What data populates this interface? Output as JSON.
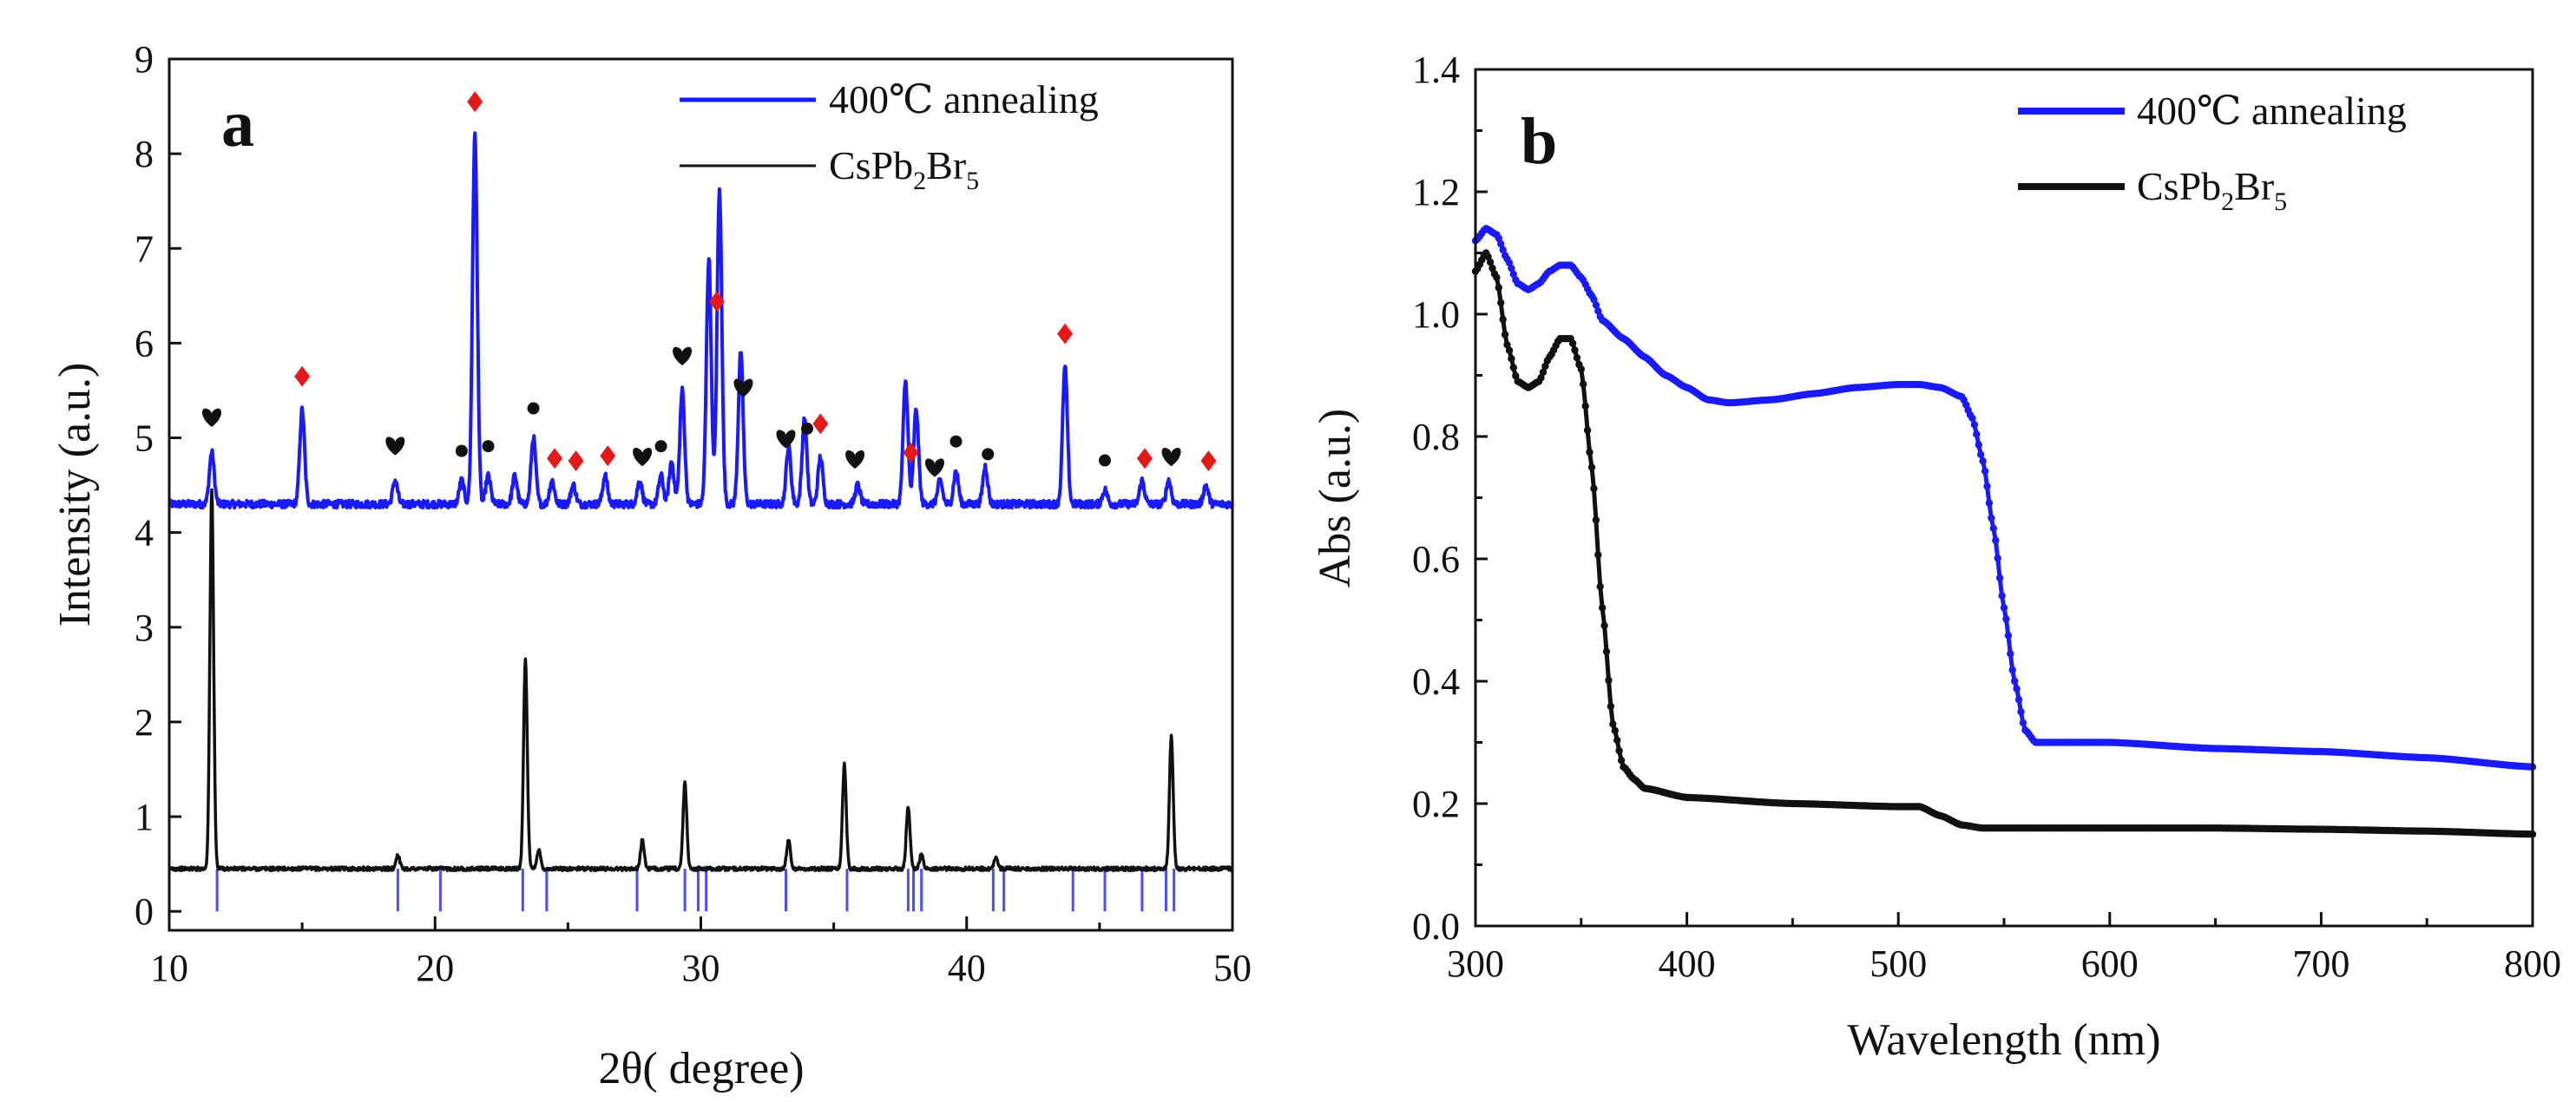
{
  "chart_data": [
    {
      "id": "a",
      "type": "line",
      "panel_label": "a",
      "xlabel": "2θ(  degree)",
      "ylabel": "Intensity (a.u.)",
      "xlim": [
        10,
        50
      ],
      "ylim": [
        -0.2,
        9
      ],
      "xticks": [
        10,
        20,
        30,
        40,
        50
      ],
      "yticks": [
        0,
        1,
        2,
        3,
        4,
        5,
        6,
        7,
        8,
        9
      ],
      "legend_position": "top-right",
      "series": [
        {
          "name": "400℃ annealing",
          "color": "#1a1aff",
          "baseline": 4.3,
          "peaks": [
            [
              11.6,
              0.55
            ],
            [
              15.0,
              1.0
            ],
            [
              18.5,
              0.25
            ],
            [
              21.0,
              0.25
            ],
            [
              21.5,
              3.9
            ],
            [
              22.0,
              0.3
            ],
            [
              23.0,
              0.3
            ],
            [
              23.7,
              0.7
            ],
            [
              24.4,
              0.25
            ],
            [
              25.2,
              0.2
            ],
            [
              26.4,
              0.3
            ],
            [
              27.7,
              0.25
            ],
            [
              28.5,
              0.3
            ],
            [
              28.9,
              0.45
            ],
            [
              29.3,
              1.2
            ],
            [
              30.3,
              2.6
            ],
            [
              30.7,
              3.3
            ],
            [
              31.5,
              1.6
            ],
            [
              33.3,
              0.6
            ],
            [
              33.9,
              0.9
            ],
            [
              34.5,
              0.5
            ],
            [
              35.9,
              0.2
            ],
            [
              37.7,
              1.3
            ],
            [
              38.1,
              1.0
            ],
            [
              39.0,
              0.25
            ],
            [
              39.6,
              0.35
            ],
            [
              40.7,
              0.4
            ],
            [
              43.7,
              1.45
            ],
            [
              45.2,
              0.15
            ],
            [
              46.6,
              0.25
            ],
            [
              47.6,
              0.25
            ],
            [
              49.0,
              0.2
            ]
          ]
        },
        {
          "name": "CsPb2Br5",
          "legend_main": "CsPb",
          "legend_sub1": "2",
          "legend_mid": "Br",
          "legend_sub2": "5",
          "color": "#111111",
          "baseline": 0.45,
          "peaks": [
            [
              11.6,
              4.0
            ],
            [
              18.6,
              0.15
            ],
            [
              23.4,
              2.2
            ],
            [
              23.9,
              0.2
            ],
            [
              27.8,
              0.3
            ],
            [
              29.4,
              0.9
            ],
            [
              33.3,
              0.3
            ],
            [
              35.4,
              1.1
            ],
            [
              37.8,
              0.65
            ],
            [
              38.3,
              0.15
            ],
            [
              41.1,
              0.12
            ],
            [
              47.7,
              1.4
            ]
          ]
        }
      ],
      "reference_lines": {
        "color": "#4d4dff",
        "positions": [
          11.8,
          18.6,
          20.2,
          23.3,
          24.2,
          27.6,
          29.4,
          29.9,
          30.2,
          33.2,
          35.5,
          37.8,
          38.0,
          38.3,
          41.0,
          41.4,
          44.0,
          45.2,
          46.6,
          47.5,
          47.8
        ]
      },
      "markers": {
        "red_diamond": [
          15.0,
          21.5,
          24.5,
          25.3,
          26.5,
          30.6,
          34.5,
          37.9,
          43.7,
          46.7,
          49.1
        ],
        "heart": [
          11.6,
          18.5,
          27.8,
          29.3,
          31.6,
          33.2,
          35.8,
          38.8,
          47.7
        ],
        "dot": [
          21.0,
          22.0,
          23.7,
          28.5,
          34.0,
          39.6,
          40.8,
          45.2
        ]
      }
    },
    {
      "id": "b",
      "type": "scatter",
      "panel_label": "b",
      "xlabel": "Wavelength (nm)",
      "ylabel": "Abs (a.u.)",
      "xlim": [
        300,
        800
      ],
      "ylim": [
        0,
        1.4
      ],
      "xticks": [
        300,
        400,
        500,
        600,
        700,
        800
      ],
      "yticks": [
        0.0,
        0.2,
        0.4,
        0.6,
        0.8,
        1.0,
        1.2,
        1.4
      ],
      "legend_position": "top-right",
      "series": [
        {
          "name": "400℃ annealing",
          "color": "#1a1aff",
          "points": [
            [
              300,
              1.12
            ],
            [
              305,
              1.14
            ],
            [
              310,
              1.13
            ],
            [
              315,
              1.09
            ],
            [
              320,
              1.05
            ],
            [
              325,
              1.04
            ],
            [
              330,
              1.05
            ],
            [
              335,
              1.07
            ],
            [
              340,
              1.08
            ],
            [
              345,
              1.08
            ],
            [
              350,
              1.06
            ],
            [
              355,
              1.03
            ],
            [
              360,
              0.99
            ],
            [
              370,
              0.96
            ],
            [
              380,
              0.93
            ],
            [
              390,
              0.9
            ],
            [
              400,
              0.88
            ],
            [
              410,
              0.86
            ],
            [
              420,
              0.855
            ],
            [
              440,
              0.86
            ],
            [
              460,
              0.87
            ],
            [
              480,
              0.88
            ],
            [
              500,
              0.885
            ],
            [
              510,
              0.885
            ],
            [
              520,
              0.88
            ],
            [
              530,
              0.865
            ],
            [
              535,
              0.83
            ],
            [
              540,
              0.76
            ],
            [
              545,
              0.65
            ],
            [
              550,
              0.52
            ],
            [
              555,
              0.4
            ],
            [
              560,
              0.32
            ],
            [
              565,
              0.3
            ],
            [
              570,
              0.3
            ],
            [
              600,
              0.3
            ],
            [
              650,
              0.29
            ],
            [
              700,
              0.285
            ],
            [
              750,
              0.275
            ],
            [
              800,
              0.26
            ]
          ]
        },
        {
          "name": "CsPb2Br5",
          "legend_main": "CsPb",
          "legend_sub1": "2",
          "legend_mid": "Br",
          "legend_sub2": "5",
          "color": "#111111",
          "points": [
            [
              300,
              1.07
            ],
            [
              305,
              1.1
            ],
            [
              310,
              1.06
            ],
            [
              315,
              0.95
            ],
            [
              320,
              0.89
            ],
            [
              325,
              0.88
            ],
            [
              330,
              0.89
            ],
            [
              335,
              0.93
            ],
            [
              340,
              0.96
            ],
            [
              345,
              0.96
            ],
            [
              350,
              0.91
            ],
            [
              355,
              0.75
            ],
            [
              360,
              0.52
            ],
            [
              365,
              0.33
            ],
            [
              370,
              0.26
            ],
            [
              375,
              0.24
            ],
            [
              380,
              0.225
            ],
            [
              400,
              0.21
            ],
            [
              450,
              0.2
            ],
            [
              500,
              0.195
            ],
            [
              510,
              0.195
            ],
            [
              520,
              0.18
            ],
            [
              530,
              0.165
            ],
            [
              540,
              0.16
            ],
            [
              600,
              0.16
            ],
            [
              650,
              0.16
            ],
            [
              700,
              0.158
            ],
            [
              750,
              0.155
            ],
            [
              800,
              0.15
            ]
          ]
        }
      ]
    }
  ]
}
